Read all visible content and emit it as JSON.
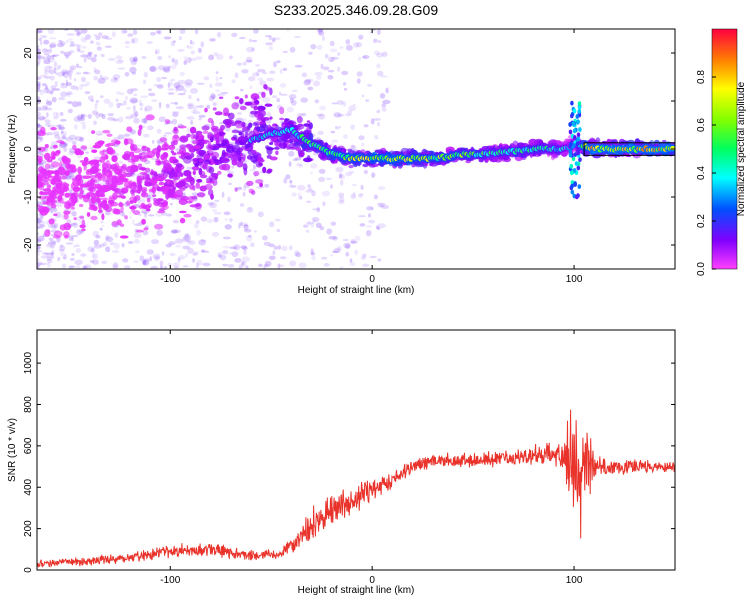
{
  "title": "S233.2025.346.09.28.G09",
  "chart_data": [
    {
      "type": "heatmap",
      "xlabel": "Height of straight line (km)",
      "ylabel": "Frequency (Hz)",
      "xlim": [
        -166,
        150
      ],
      "ylim": [
        -25,
        25
      ],
      "xticks": [
        -100,
        0,
        100
      ],
      "yticks": [
        -20,
        -10,
        0,
        10,
        20
      ],
      "colorbar": {
        "label": "Normalized spectral amplitude",
        "range": [
          0,
          1
        ],
        "ticks": [
          0.0,
          0.2,
          0.4,
          0.6,
          0.8
        ],
        "tick_labels": [
          "0.0",
          "0.2",
          "0.4",
          "0.6",
          "0.8"
        ]
      },
      "ridge": {
        "x": [
          -166,
          -150,
          -130,
          -110,
          -100,
          -90,
          -80,
          -70,
          -60,
          -50,
          -40,
          -30,
          -20,
          -10,
          0,
          10,
          20,
          30,
          40,
          50,
          60,
          70,
          80,
          90,
          95,
          100,
          105,
          110,
          120,
          130,
          140,
          150
        ],
        "freq": [
          -6,
          -8,
          -7,
          -6,
          -5,
          -3,
          -1,
          1,
          2,
          3,
          4,
          1,
          -1,
          -2,
          -2,
          -2,
          -2,
          -2,
          -1.5,
          -1,
          -1,
          -0.5,
          0,
          0,
          0,
          1,
          0.5,
          0,
          0,
          0,
          0,
          0
        ],
        "amp": [
          0.05,
          0.08,
          0.1,
          0.15,
          0.2,
          0.25,
          0.3,
          0.35,
          0.4,
          0.45,
          0.5,
          0.6,
          0.7,
          0.75,
          0.8,
          0.85,
          0.8,
          0.75,
          0.7,
          0.65,
          0.55,
          0.55,
          0.6,
          0.5,
          0.45,
          0.2,
          0.8,
          0.9,
          0.9,
          0.9,
          0.9,
          0.9
        ]
      }
    },
    {
      "type": "line",
      "xlabel": "Height of straight line (km)",
      "ylabel": "SNR (10 * v/v)",
      "xlim": [
        -166,
        150
      ],
      "ylim": [
        0,
        1160
      ],
      "xticks": [
        -100,
        0,
        100
      ],
      "yticks": [
        0,
        200,
        400,
        600,
        800,
        1000
      ],
      "series": [
        {
          "name": "SNR",
          "color": "#e8322a",
          "anchors_x": [
            -166,
            -140,
            -120,
            -100,
            -80,
            -60,
            -45,
            -38,
            -30,
            -20,
            -10,
            0,
            10,
            20,
            30,
            50,
            70,
            80,
            90,
            95,
            100,
            103,
            106,
            110,
            130,
            150
          ],
          "anchors_y": [
            30,
            45,
            60,
            90,
            100,
            70,
            75,
            140,
            220,
            290,
            340,
            390,
            440,
            500,
            530,
            530,
            540,
            550,
            560,
            560,
            540,
            520,
            520,
            500,
            500,
            500
          ],
          "noise_amp": [
            20,
            25,
            30,
            40,
            45,
            30,
            30,
            60,
            90,
            90,
            80,
            70,
            60,
            50,
            40,
            40,
            50,
            60,
            70,
            80,
            400,
            450,
            300,
            60,
            40,
            35
          ]
        }
      ]
    }
  ]
}
